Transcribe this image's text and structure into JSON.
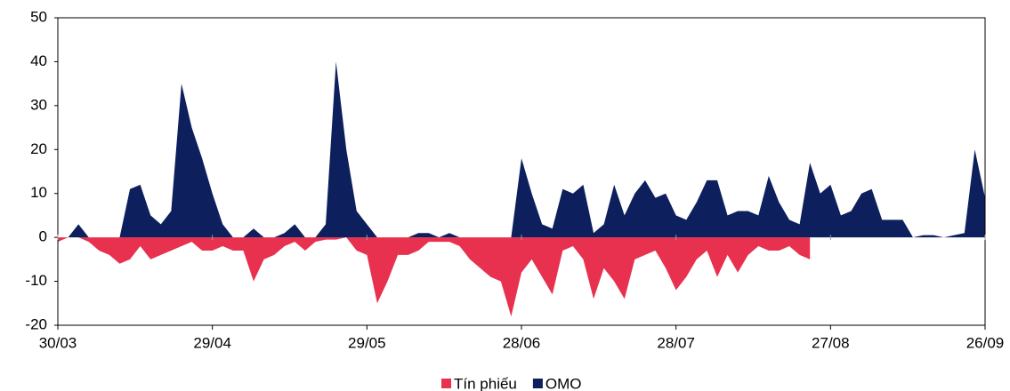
{
  "chart_data": {
    "type": "area",
    "categories": [
      "30/03",
      null,
      null,
      null,
      null,
      null,
      null,
      null,
      null,
      null,
      null,
      null,
      null,
      null,
      null,
      "29/04",
      null,
      null,
      null,
      null,
      null,
      null,
      null,
      null,
      null,
      null,
      null,
      null,
      null,
      null,
      "29/05",
      null,
      null,
      null,
      null,
      null,
      null,
      null,
      null,
      null,
      null,
      null,
      null,
      null,
      null,
      "28/06",
      null,
      null,
      null,
      null,
      null,
      null,
      null,
      null,
      null,
      null,
      null,
      null,
      null,
      null,
      "28/07",
      null,
      null,
      null,
      null,
      null,
      null,
      null,
      null,
      null,
      null,
      null,
      null,
      null,
      null,
      "27/08",
      null,
      null,
      null,
      null,
      null,
      null,
      null,
      null,
      null,
      null,
      null,
      null,
      null,
      null,
      "26/09"
    ],
    "series": [
      {
        "name": "Tín phiếu",
        "color": "#e8304f",
        "values": [
          -1,
          0,
          0,
          -1,
          -3,
          -4,
          -6,
          -5,
          -2,
          -5,
          -4,
          -3,
          -2,
          -1,
          -3,
          -3,
          -2,
          -3,
          -3,
          -10,
          -5,
          -4,
          -2,
          -1,
          -3,
          -1,
          -0.5,
          -0.5,
          0,
          -3,
          -4,
          -15,
          -10,
          -4,
          -4,
          -3,
          -1,
          -1,
          -1,
          -2,
          -5,
          -7,
          -9,
          -10,
          -18,
          -8,
          -5,
          -9,
          -13,
          -3,
          -2,
          -5,
          -14,
          -7,
          -10,
          -14,
          -5,
          -4,
          -3,
          -7,
          -12,
          -9,
          -5,
          -3,
          -9,
          -4,
          -8,
          -4,
          -2,
          -3,
          -3,
          -2,
          -4,
          -5,
          null,
          null,
          null,
          null,
          null,
          null,
          null,
          null,
          null,
          null,
          null,
          null,
          null,
          null,
          null,
          null,
          null
        ]
      },
      {
        "name": "OMO",
        "color": "#0d1f5c",
        "values": [
          0,
          0,
          3,
          0,
          0,
          0,
          0,
          11,
          12,
          5,
          3,
          6,
          35,
          25,
          18,
          10,
          3,
          0,
          0,
          2,
          0,
          0,
          1,
          3,
          0,
          0,
          3,
          40,
          20,
          6,
          3,
          0,
          0,
          0,
          0,
          1,
          1,
          0,
          1,
          0,
          0,
          0,
          0,
          0,
          0,
          18,
          10,
          3,
          2,
          11,
          10,
          12,
          1,
          3,
          12,
          5,
          10,
          13,
          9,
          10,
          5,
          4,
          8,
          13,
          13,
          5,
          6,
          6,
          5,
          14,
          8,
          4,
          3,
          17,
          10,
          12,
          5,
          6,
          10,
          11,
          4,
          4,
          4,
          0,
          0.5,
          0.5,
          0,
          0.5,
          1,
          20,
          9
        ]
      }
    ],
    "ylim": [
      -20,
      50
    ],
    "yticks": [
      -20,
      -10,
      0,
      10,
      20,
      30,
      40,
      50
    ]
  }
}
